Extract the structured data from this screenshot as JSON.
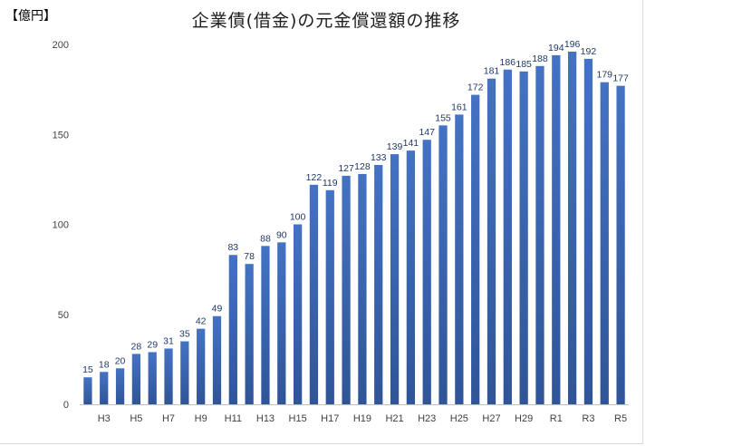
{
  "chart_data": {
    "type": "bar",
    "title": "企業債(借金)の元金償還額の推移",
    "unit_label": "【億円】",
    "xlabel": "",
    "ylabel": "",
    "ylim": [
      0,
      200
    ],
    "yticks": [
      0,
      50,
      100,
      150,
      200
    ],
    "grid": false,
    "legend": "none",
    "bar_color": "#4472c4",
    "bar_color_dark": "#2f5597",
    "categories": [
      "H2",
      "H3",
      "H4",
      "H5",
      "H6",
      "H7",
      "H8",
      "H9",
      "H10",
      "H11",
      "H12",
      "H13",
      "H14",
      "H15",
      "H16",
      "H17",
      "H18",
      "H19",
      "H20",
      "H21",
      "H22",
      "H23",
      "H24",
      "H25",
      "H26",
      "H27",
      "H28",
      "H29",
      "H30",
      "R1",
      "R2",
      "R3",
      "R4",
      "R5"
    ],
    "shown_tick_labels": [
      "H3",
      "H5",
      "H7",
      "H9",
      "H11",
      "H13",
      "H15",
      "H17",
      "H19",
      "H21",
      "H23",
      "H25",
      "H27",
      "H29",
      "R1",
      "R3",
      "R5"
    ],
    "values": [
      15,
      18,
      20,
      28,
      29,
      31,
      35,
      42,
      49,
      83,
      78,
      88,
      90,
      100,
      122,
      119,
      127,
      128,
      133,
      139,
      141,
      147,
      155,
      161,
      172,
      181,
      186,
      185,
      188,
      194,
      196,
      192,
      179,
      177
    ]
  }
}
